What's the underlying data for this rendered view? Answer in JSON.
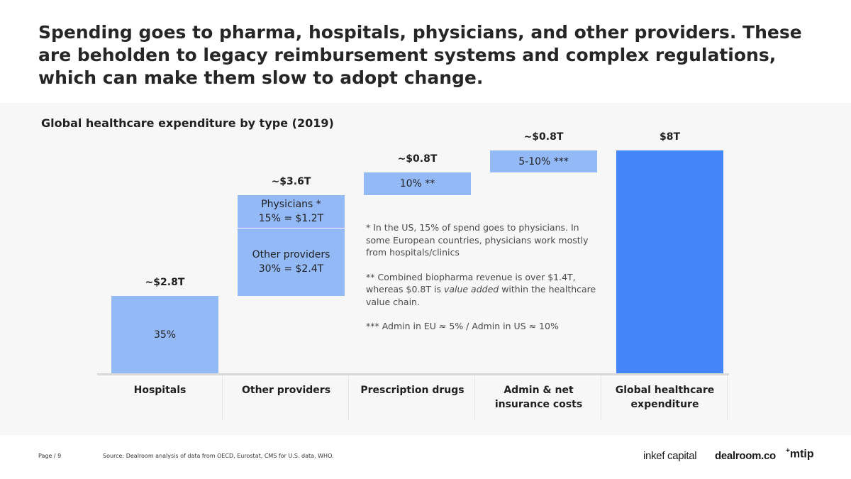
{
  "headline": "Spending goes to pharma, hospitals, physicians, and other providers. These are beholden to legacy reimbursement systems and complex regulations, which can make them slow to adopt change.",
  "chart_data": {
    "type": "bar",
    "subtype": "waterfall",
    "title": "Global healthcare expenditure by type (2019)",
    "unit": "$T",
    "ylim": [
      0,
      8
    ],
    "categories": [
      "Hospitals",
      "Other providers",
      "Prescription drugs",
      "Admin & net insurance costs",
      "Global healthcare expenditure"
    ],
    "value_labels": [
      "~$2.8T",
      "~$3.6T",
      "~$0.8T",
      "~$0.8T",
      "$8T"
    ],
    "segments": [
      {
        "category": "Hospitals",
        "start": 0,
        "end": 2.8,
        "label_lines": [
          "35%"
        ]
      },
      {
        "category": "Other providers",
        "start": 2.8,
        "end": 5.2,
        "label_lines": [
          "Other providers",
          "30% = $2.4T"
        ]
      },
      {
        "category": "Other providers",
        "start": 5.2,
        "end": 6.4,
        "label_lines": [
          "Physicians *",
          "15% = $1.2T"
        ]
      },
      {
        "category": "Prescription drugs",
        "start": 6.4,
        "end": 7.2,
        "label_lines": [
          "10% **"
        ]
      },
      {
        "category": "Admin & net insurance costs",
        "start": 7.2,
        "end": 8.0,
        "label_lines": [
          "5-10% ***"
        ]
      },
      {
        "category": "Global healthcare expenditure",
        "start": 0,
        "end": 8.0,
        "label_lines": [],
        "total": true
      }
    ],
    "colors": {
      "segment": "#94b9f7",
      "total": "#4486f9"
    },
    "notes": {
      "n1": "* In the US, 15% of spend  goes to  physicians. In some European countries, physicians work mostly from hospitals/clinics",
      "n2_pre": "** Combined biopharma revenue is over $1.4T, whereas $0.8T is ",
      "n2_em": "value added",
      "n2_post": " within the healthcare value chain.",
      "n3": "*** Admin in EU ≈ 5% / Admin in US ≈ 10%"
    }
  },
  "footer": {
    "page": "Page / 9",
    "source": "Source: Dealroom analysis of data from OECD, Eurostat, CMS for U.S. data, WHO.",
    "logos": {
      "inkef": "inkef capital",
      "dealroom": "dealroom.co",
      "mtip_sup": "+",
      "mtip": "mtip"
    }
  }
}
